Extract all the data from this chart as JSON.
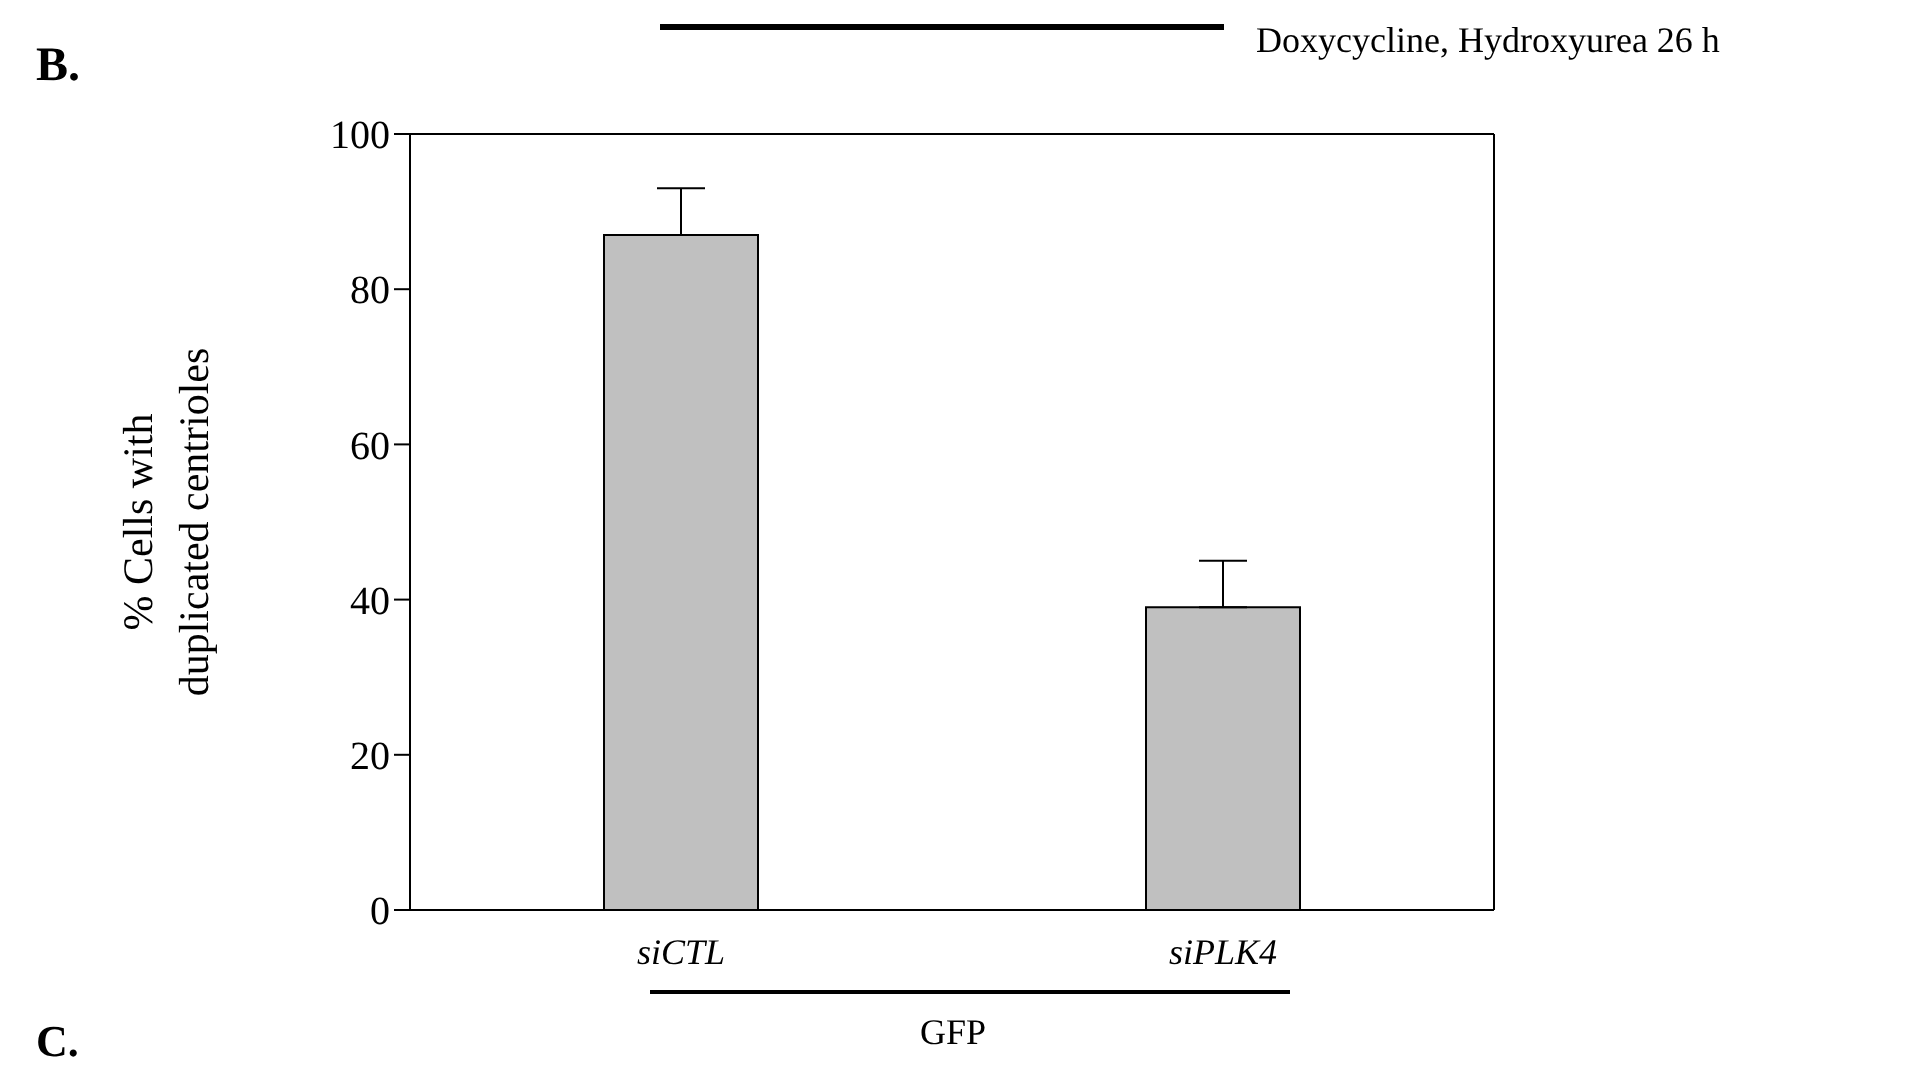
{
  "chart_data": {
    "type": "bar",
    "ylabel": "% Cells with duplicated centrioles",
    "categories": [
      "siCTL",
      "siPLK4"
    ],
    "values": [
      87,
      39
    ],
    "color": "#c0c0c0",
    "errors": [
      [
        87,
        93
      ],
      [
        39,
        45
      ]
    ],
    "ylim": [
      0,
      100
    ],
    "yticks": [
      0,
      20,
      40,
      60,
      80,
      100
    ],
    "annotations": [
      "B.",
      "Doxycycline, Hydroxyurea 26 h",
      "GFP",
      "C."
    ]
  }
}
